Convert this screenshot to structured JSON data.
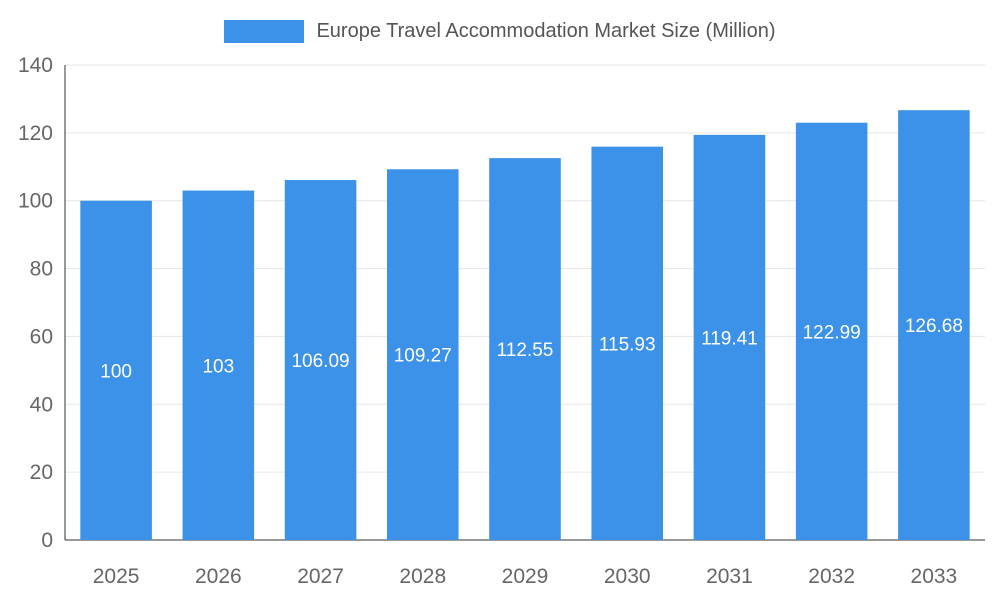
{
  "chart_data": {
    "type": "bar",
    "title": "Europe Travel Accommodation Market Size (Million)",
    "categories": [
      "2025",
      "2026",
      "2027",
      "2028",
      "2029",
      "2030",
      "2031",
      "2032",
      "2033"
    ],
    "values": [
      100,
      103,
      106.09,
      109.27,
      112.55,
      115.93,
      119.41,
      122.99,
      126.68
    ],
    "bar_labels": [
      "100",
      "103",
      "106.09",
      "109.27",
      "112.55",
      "115.93",
      "119.41",
      "122.99",
      "126.68"
    ],
    "xlabel": "",
    "ylabel": "",
    "ylim": [
      0,
      140
    ],
    "yticks": [
      0,
      20,
      40,
      60,
      80,
      100,
      120,
      140
    ],
    "grid": true,
    "legend_position": "top",
    "colors": {
      "bar": "#3B92E8",
      "bar_label_text": "#ffffff",
      "axis_text": "#666666",
      "title_text": "#555555",
      "grid_line": "#e6e6e6",
      "axis_line": "#333333",
      "background": "#ffffff"
    }
  }
}
